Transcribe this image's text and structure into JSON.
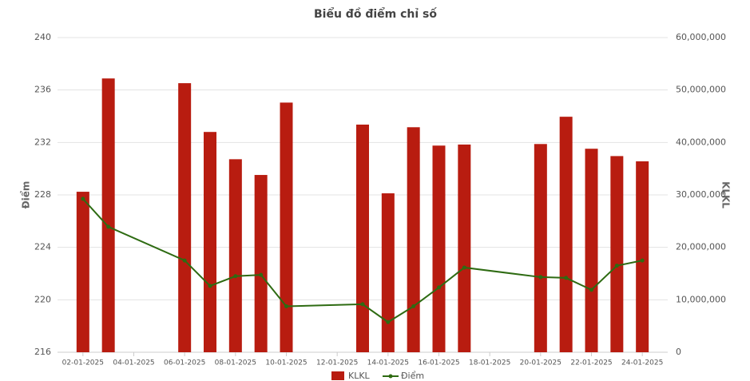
{
  "chart_data": {
    "type": "combo",
    "title": "Biểu đồ điểm chỉ số",
    "y_label": "Điểm",
    "y2_label": "KLKL",
    "x": [
      "02-01-2025",
      "03-01-2025",
      "06-01-2025",
      "07-01-2025",
      "08-01-2025",
      "09-01-2025",
      "10-01-2025",
      "13-01-2025",
      "14-01-2025",
      "15-01-2025",
      "16-01-2025",
      "17-01-2025",
      "20-01-2025",
      "21-01-2025",
      "22-01-2025",
      "23-01-2025",
      "24-01-2025"
    ],
    "xlim": [
      "01-01-2025",
      "25-01-2025"
    ],
    "xticks": [
      "02-01-2025",
      "04-01-2025",
      "06-01-2025",
      "08-01-2025",
      "10-01-2025",
      "12-01-2025",
      "14-01-2025",
      "16-01-2025",
      "18-01-2025",
      "20-01-2025",
      "22-01-2025",
      "24-01-2025"
    ],
    "ylim": [
      216,
      240
    ],
    "yticks": [
      216,
      220,
      224,
      228,
      232,
      236,
      240
    ],
    "y2lim": [
      0,
      60000000
    ],
    "y2ticks": [
      0,
      {
        "value": 10000000,
        "label": "10,000,000"
      },
      {
        "value": 20000000,
        "label": "20,000,000"
      },
      {
        "value": 30000000,
        "label": "30,000,000"
      },
      {
        "value": 40000000,
        "label": "40,000,000"
      },
      {
        "value": 50000000,
        "label": "50,000,000"
      },
      {
        "value": 60000000,
        "label": "60,000,000"
      }
    ],
    "grid": true,
    "series": [
      {
        "name": "KLKL",
        "type": "bar",
        "axis": "y2",
        "color": "#b81c10",
        "values": [
          30600000,
          52200000,
          51300000,
          42000000,
          36800000,
          33800000,
          47600000,
          43400000,
          30300000,
          42900000,
          39400000,
          39600000,
          39700000,
          44900000,
          38800000,
          37400000,
          36400000
        ]
      },
      {
        "name": "Điểm",
        "type": "line",
        "color": "#2e6b12",
        "values": [
          227.7,
          225.57,
          223.0,
          221.06,
          221.8,
          221.9,
          219.5,
          219.66,
          218.3,
          219.5,
          220.94,
          222.46,
          221.73,
          221.67,
          220.76,
          222.6,
          223.0
        ]
      }
    ]
  }
}
